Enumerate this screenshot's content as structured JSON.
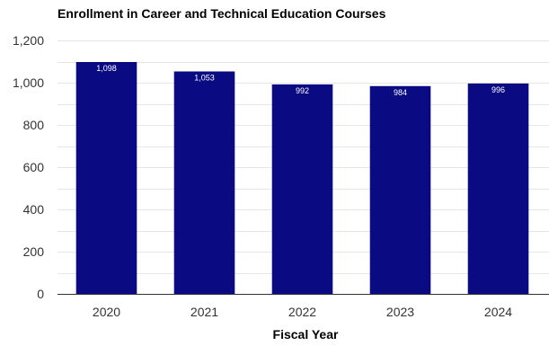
{
  "chart_data": {
    "type": "bar",
    "title": "Enrollment in Career and Technical Education Courses",
    "xlabel": "Fiscal Year",
    "ylabel": "",
    "categories": [
      "2020",
      "2021",
      "2022",
      "2023",
      "2024"
    ],
    "values": [
      1098,
      1053,
      992,
      984,
      996
    ],
    "data_labels": [
      "1,098",
      "1,053",
      "992",
      "984",
      "996"
    ],
    "ylim": [
      0,
      1200
    ],
    "yticks": [
      0,
      200,
      400,
      600,
      800,
      1000,
      1200
    ],
    "ytick_labels": [
      "0",
      "200",
      "400",
      "600",
      "800",
      "1,000",
      "1,200"
    ],
    "grid": true,
    "legend": "none",
    "bar_color": "#0a0a82",
    "label_color": "#ffffff"
  }
}
